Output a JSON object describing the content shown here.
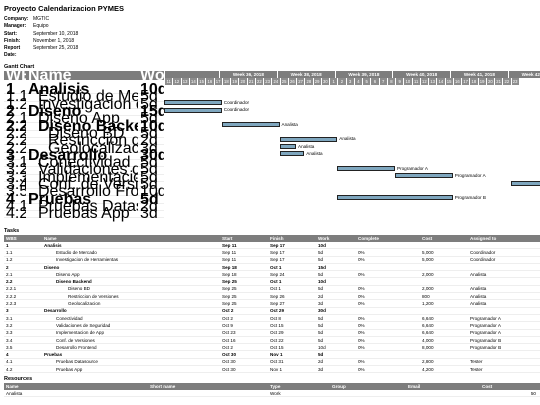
{
  "title": "Proyecto Calendarizacion PYMES",
  "meta": [
    {
      "k": "Company:",
      "v": "MGTIC"
    },
    {
      "k": "Manager:",
      "v": "Equipo"
    },
    {
      "k": "Start:",
      "v": "September 10, 2018"
    },
    {
      "k": "Finish:",
      "v": "November 1, 2018"
    },
    {
      "k": "Report Date:",
      "v": "September 25, 2018"
    }
  ],
  "gantt": {
    "heading": "Gantt Chart",
    "cols": [
      "WBS",
      "Name",
      "Work"
    ],
    "weeks": [
      "Week 36, 2018",
      "Week 38, 2018",
      "Week 39, 2018",
      "Week 40, 2018",
      "Week 41, 2018",
      "Week 42, 2018",
      "Week"
    ],
    "days": [
      "11",
      "12",
      "13",
      "14",
      "15",
      "16",
      "17",
      "18",
      "19",
      "20",
      "21",
      "22",
      "23",
      "24",
      "25",
      "26",
      "27",
      "28",
      "29",
      "30",
      "1",
      "2",
      "3",
      "4",
      "5",
      "6",
      "7",
      "8",
      "9",
      "10",
      "11",
      "12",
      "13",
      "14",
      "15",
      "16",
      "17",
      "18",
      "19",
      "20",
      "21",
      "22",
      "23"
    ],
    "rows": [
      {
        "wbs": "1",
        "name": "Analisis",
        "work": "10d",
        "bold": true
      },
      {
        "wbs": "1.1",
        "name": "Estudio de Mercado",
        "work": "5d",
        "bold": false,
        "bar": "Coordinador"
      },
      {
        "wbs": "1.2",
        "name": "Investigacion de Herramientas",
        "work": "5d",
        "bold": false,
        "bar": "Coordinador"
      },
      {
        "wbs": "2",
        "name": "Diseno",
        "work": "15d",
        "bold": true
      },
      {
        "wbs": "2.1",
        "name": "Diseno App",
        "work": "5d",
        "bold": false,
        "bar": "Analista"
      },
      {
        "wbs": "2.2",
        "name": "Diseno Backend",
        "work": "10d",
        "bold": true
      },
      {
        "wbs": "2.2.1",
        "name": "Diseno BD",
        "work": "5d",
        "bold": false,
        "bar": "Analista"
      },
      {
        "wbs": "2.2.2",
        "name": "Restriccion de Versiones",
        "work": "2d",
        "bold": false,
        "bar": "Analista"
      },
      {
        "wbs": "2.2.3",
        "name": "Geolocalizacion",
        "work": "3d",
        "bold": false,
        "bar": "Analista"
      },
      {
        "wbs": "3",
        "name": "Desarrollo",
        "work": "30d",
        "bold": true
      },
      {
        "wbs": "3.1",
        "name": "Conectividad",
        "work": "5d",
        "bold": false,
        "bar": "Programador A"
      },
      {
        "wbs": "3.2",
        "name": "Validaciones de Seguridad",
        "work": "5d",
        "bold": false,
        "bar": "Programador A"
      },
      {
        "wbs": "3.3",
        "name": "Implementacion de App",
        "work": "5d",
        "bold": false,
        "bar": "Progra"
      },
      {
        "wbs": "3.4",
        "name": "Conf. de Versiones",
        "work": "5d",
        "bold": false
      },
      {
        "wbs": "3.5",
        "name": "Desarrollo Frontend",
        "work": "10d",
        "bold": false,
        "bar": "Programador B"
      },
      {
        "wbs": "4",
        "name": "Pruebas",
        "work": "5d",
        "bold": true
      },
      {
        "wbs": "4.1",
        "name": "Pruebas Datasource",
        "work": "2d",
        "bold": false
      },
      {
        "wbs": "4.2",
        "name": "Pruebas App",
        "work": "3d",
        "bold": false
      }
    ]
  },
  "tasks": {
    "heading": "Tasks",
    "cols": [
      "WBS",
      "Name",
      "Start",
      "Finish",
      "Work",
      "Complete",
      "Cost",
      "Assigned to"
    ],
    "rows": [
      [
        "1",
        "Analisis",
        "Sep 11",
        "Sep 17",
        "10d",
        "",
        "",
        "",
        true
      ],
      [
        "1.1",
        "Estudio de Mercado",
        "Sep 11",
        "Sep 17",
        "5d",
        "0%",
        "5,000",
        "Coordinador",
        false
      ],
      [
        "1.2",
        "Investigacion de Herramientas",
        "Sep 11",
        "Sep 17",
        "5d",
        "0%",
        "5,000",
        "Coordinador",
        false
      ],
      [
        "2",
        "Diseno",
        "Sep 18",
        "Oct 1",
        "15d",
        "",
        "",
        "",
        true
      ],
      [
        "2.1",
        "Diseno App",
        "Sep 18",
        "Sep 24",
        "5d",
        "0%",
        "2,000",
        "Analista",
        false
      ],
      [
        "2.2",
        "Diseno Backend",
        "Sep 25",
        "Oct 1",
        "10d",
        "",
        "",
        "",
        true
      ],
      [
        "2.2.1",
        "Diseno BD",
        "Sep 25",
        "Oct 1",
        "5d",
        "0%",
        "2,000",
        "Analista",
        false
      ],
      [
        "2.2.2",
        "Restriccion de Versiones",
        "Sep 25",
        "Sep 26",
        "2d",
        "0%",
        "800",
        "Analista",
        false
      ],
      [
        "2.2.3",
        "Geolocalizacion",
        "Sep 25",
        "Sep 27",
        "3d",
        "0%",
        "1,200",
        "Analista",
        false
      ],
      [
        "3",
        "Desarrollo",
        "Oct 2",
        "Oct 29",
        "30d",
        "",
        "",
        "",
        true
      ],
      [
        "3.1",
        "Conectividad",
        "Oct 2",
        "Oct 8",
        "5d",
        "0%",
        "6,640",
        "Programador A",
        false
      ],
      [
        "3.2",
        "Validaciones de Seguridad",
        "Oct 9",
        "Oct 15",
        "5d",
        "0%",
        "6,640",
        "Programador A",
        false
      ],
      [
        "3.3",
        "Implementacion de App",
        "Oct 23",
        "Oct 29",
        "5d",
        "0%",
        "6,640",
        "Programador A",
        false
      ],
      [
        "3.4",
        "Conf. de Versiones",
        "Oct 16",
        "Oct 22",
        "5d",
        "0%",
        "4,000",
        "Programador B",
        false
      ],
      [
        "3.5",
        "Desarrollo Frontend",
        "Oct 2",
        "Oct 15",
        "10d",
        "0%",
        "8,000",
        "Programador B",
        false
      ],
      [
        "4",
        "Pruebas",
        "Oct 30",
        "Nov 1",
        "5d",
        "",
        "",
        "",
        true
      ],
      [
        "4.1",
        "Pruebas Datasource",
        "Oct 30",
        "Oct 31",
        "2d",
        "0%",
        "2,800",
        "Tester",
        false
      ],
      [
        "4.2",
        "Pruebas App",
        "Oct 30",
        "Nov 1",
        "3d",
        "0%",
        "4,200",
        "Tester",
        false
      ]
    ]
  },
  "resources": {
    "heading": "Resources",
    "cols": [
      "Name",
      "Short name",
      "Type",
      "Group",
      "Email",
      "Cost"
    ],
    "rows": [
      [
        "Analista",
        "",
        "Work",
        "",
        "",
        "50"
      ]
    ]
  },
  "colors": {
    "header": "#7d7d7d",
    "bar": "#7fa7bf"
  }
}
